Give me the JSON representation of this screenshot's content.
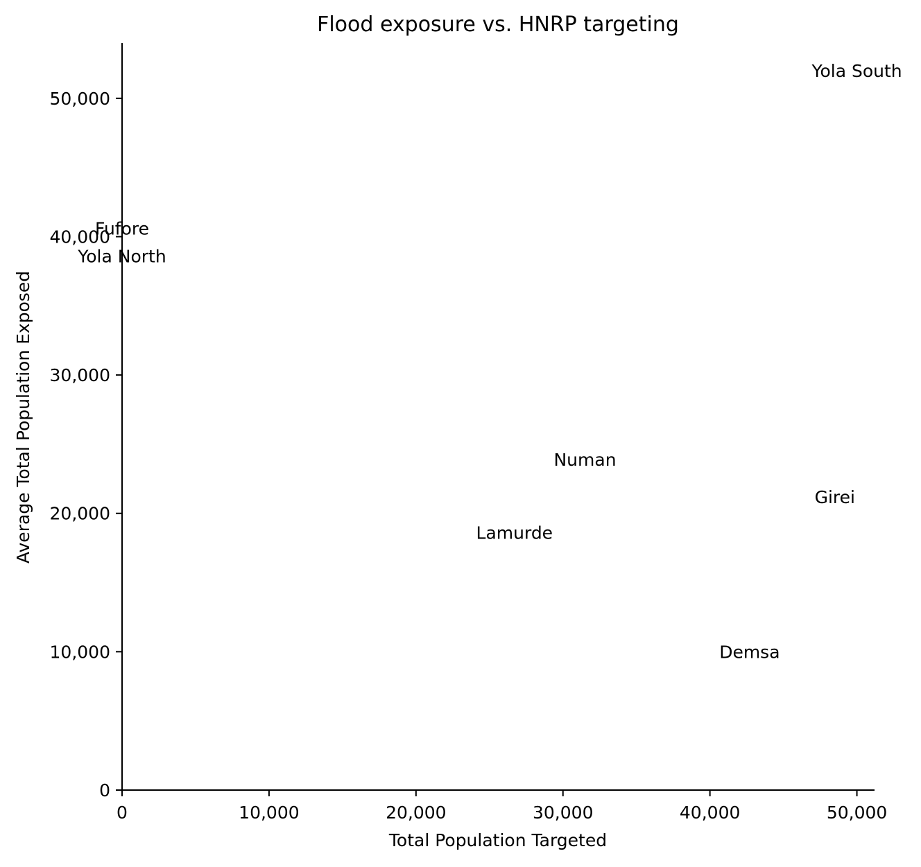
{
  "chart_data": {
    "type": "scatter",
    "title": "Flood exposure vs. HNRP targeting",
    "xlabel": "Total Population Targeted",
    "ylabel": "Average Total Population Exposed",
    "xlim": [
      0,
      51200
    ],
    "ylim": [
      0,
      54000
    ],
    "x_ticks": [
      0,
      10000,
      20000,
      30000,
      40000,
      50000
    ],
    "x_tick_labels": [
      "0",
      "10,000",
      "20,000",
      "30,000",
      "40,000",
      "50,000"
    ],
    "y_ticks": [
      0,
      10000,
      20000,
      30000,
      40000,
      50000
    ],
    "y_tick_labels": [
      "0",
      "10,000",
      "20,000",
      "30,000",
      "40,000",
      "50,000"
    ],
    "grid": false,
    "points": [
      {
        "label": "Yola South",
        "x": 50000,
        "y": 52000
      },
      {
        "label": "Fufore",
        "x": 0,
        "y": 40600
      },
      {
        "label": "Yola North",
        "x": 0,
        "y": 38600
      },
      {
        "label": "Numan",
        "x": 31500,
        "y": 23900
      },
      {
        "label": "Girei",
        "x": 48500,
        "y": 21200
      },
      {
        "label": "Lamurde",
        "x": 26700,
        "y": 18600
      },
      {
        "label": "Demsa",
        "x": 42700,
        "y": 10000
      }
    ],
    "colors": {
      "axis": "#000000",
      "text": "#000000",
      "background": "#ffffff"
    }
  }
}
